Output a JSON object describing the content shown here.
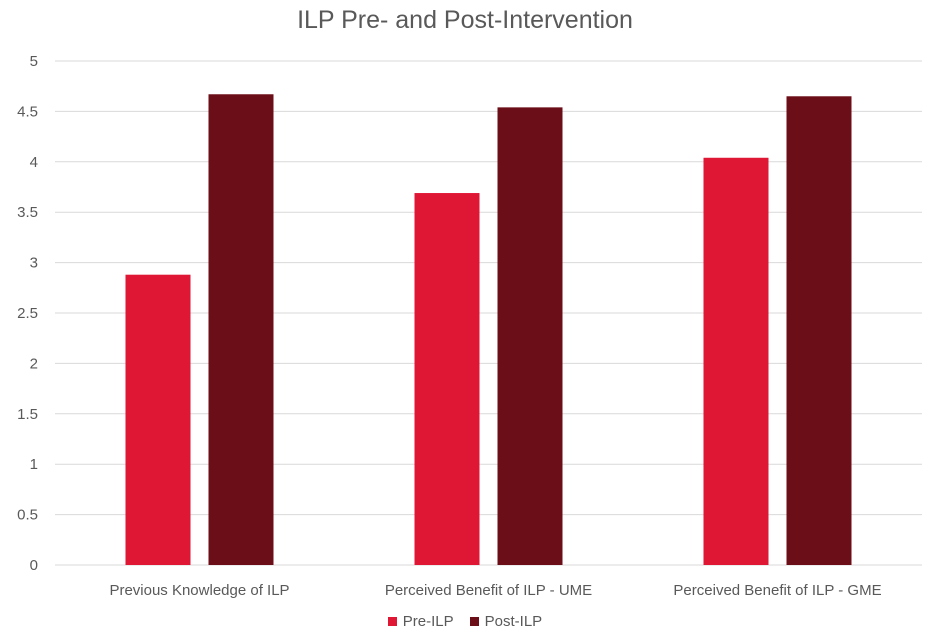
{
  "chart_data": {
    "type": "bar",
    "title": "ILP Pre- and Post-Intervention",
    "categories": [
      "Previous Knowledge of ILP",
      "Perceived Benefit of ILP - UME",
      "Perceived Benefit of ILP - GME"
    ],
    "series": [
      {
        "name": "Pre-ILP",
        "values": [
          2.88,
          3.69,
          4.04
        ],
        "color": "#e01635"
      },
      {
        "name": "Post-ILP",
        "values": [
          4.67,
          4.54,
          4.65
        ],
        "color": "#6b0e18"
      }
    ],
    "ylim": [
      0,
      5
    ],
    "yticks": [
      "0",
      "0.5",
      "1",
      "1.5",
      "2",
      "2.5",
      "3",
      "3.5",
      "4",
      "4.5",
      "5"
    ],
    "grid": true,
    "legend_position": "bottom"
  }
}
